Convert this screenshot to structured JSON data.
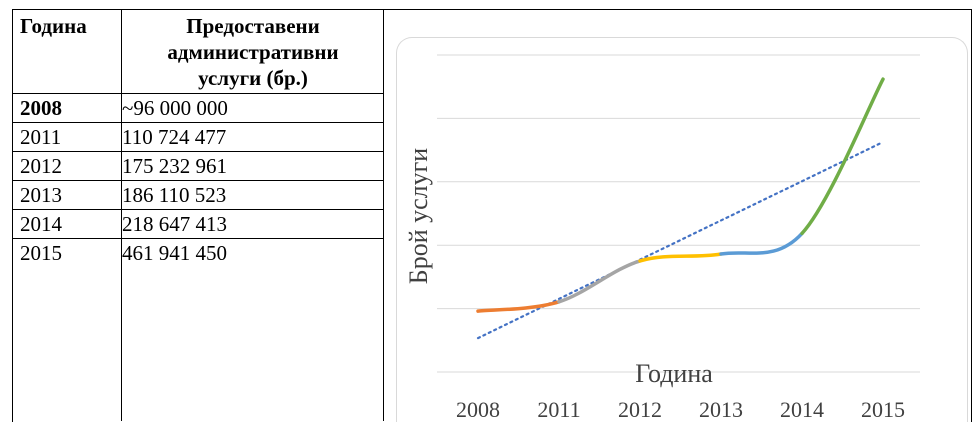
{
  "table": {
    "header_year": "Година",
    "header_services_lines": [
      "Предоставени",
      "административни",
      "услуги (бр.)"
    ],
    "rows": [
      {
        "year": "2008",
        "value": "~96 000 000",
        "bold": true
      },
      {
        "year": "2011",
        "value": "110 724 477"
      },
      {
        "year": "2012",
        "value": "175 232 961"
      },
      {
        "year": "2013",
        "value": "186 110 523"
      },
      {
        "year": "2014",
        "value": "218 647 413"
      },
      {
        "year": "2015",
        "value": "461 941 450"
      }
    ]
  },
  "chart_data": {
    "type": "line",
    "title": "",
    "xlabel": "Година",
    "ylabel": "Брой услуги",
    "categories": [
      "2008",
      "2011",
      "2012",
      "2013",
      "2014",
      "2015"
    ],
    "values": [
      96000000,
      110724477,
      175232961,
      186110523,
      218647413,
      461941450
    ],
    "segment_colors": [
      "#ed7d31",
      "#a5a5a5",
      "#ffc000",
      "#5b9bd5",
      "#70ad47"
    ],
    "trendline": {
      "type": "linear",
      "color": "#4472c4",
      "style": "dotted"
    },
    "ylim": [
      0,
      500000000
    ],
    "y_gridlines": 6,
    "y_tick_labels_shown": false,
    "grid": true,
    "legend": "none"
  }
}
